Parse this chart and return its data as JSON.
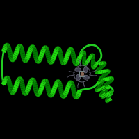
{
  "background_color": "#000000",
  "helix_color": "#22cc22",
  "helix_dark": "#118811",
  "helix_edge": "#005500",
  "heme_color": "#555555",
  "heme_bond": "#777777",
  "figure_size": [
    2.0,
    2.0
  ],
  "dpi": 100,
  "image_xlim": [
    0,
    200
  ],
  "image_ylim": [
    0,
    200
  ]
}
